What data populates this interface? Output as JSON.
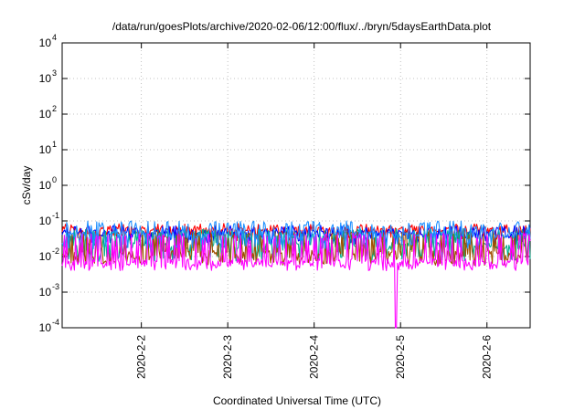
{
  "chart_data": {
    "type": "line",
    "title": "/data/run/goesPlots/archive/2020-02-06/12:00/flux/../bryn/5daysEarthData.plot",
    "xlabel": "Coordinated Universal Time (UTC)",
    "ylabel": "cSv/day",
    "yscale": "log",
    "ylim": [
      0.0001,
      10000
    ],
    "y_ticks": [
      {
        "base": "10",
        "exp": "-4"
      },
      {
        "base": "10",
        "exp": "-3"
      },
      {
        "base": "10",
        "exp": "-2"
      },
      {
        "base": "10",
        "exp": "-1"
      },
      {
        "base": "10",
        "exp": "0"
      },
      {
        "base": "10",
        "exp": "1"
      },
      {
        "base": "10",
        "exp": "2"
      },
      {
        "base": "10",
        "exp": "3"
      },
      {
        "base": "10",
        "exp": "4"
      }
    ],
    "xlim": [
      "2020-02-01T02:00",
      "2020-02-06T12:00"
    ],
    "x_ticks": [
      "2020-2-2",
      "2020-2-3",
      "2020-2-4",
      "2020-2-5",
      "2020-2-6"
    ],
    "grid": true,
    "series": [
      {
        "color": "#ff0000",
        "typical": 0.055,
        "low": 0.035,
        "high": 0.085
      },
      {
        "color": "#0000ff",
        "typical": 0.045,
        "low": 0.028,
        "high": 0.075
      },
      {
        "color": "#00b08c",
        "typical": 0.02,
        "low": 0.009,
        "high": 0.06
      },
      {
        "color": "#a05000",
        "typical": 0.012,
        "low": 0.007,
        "high": 0.05
      },
      {
        "color": "#1e90ff",
        "typical": 0.04,
        "low": 0.02,
        "high": 0.1
      },
      {
        "color": "#ff00ff",
        "typical": 0.007,
        "low": 0.005,
        "high": 0.045
      }
    ],
    "annotations": [
      {
        "series": 5,
        "x": "2020-02-04T22:40",
        "y": 0.0001,
        "note": "dip to axis minimum"
      }
    ]
  }
}
